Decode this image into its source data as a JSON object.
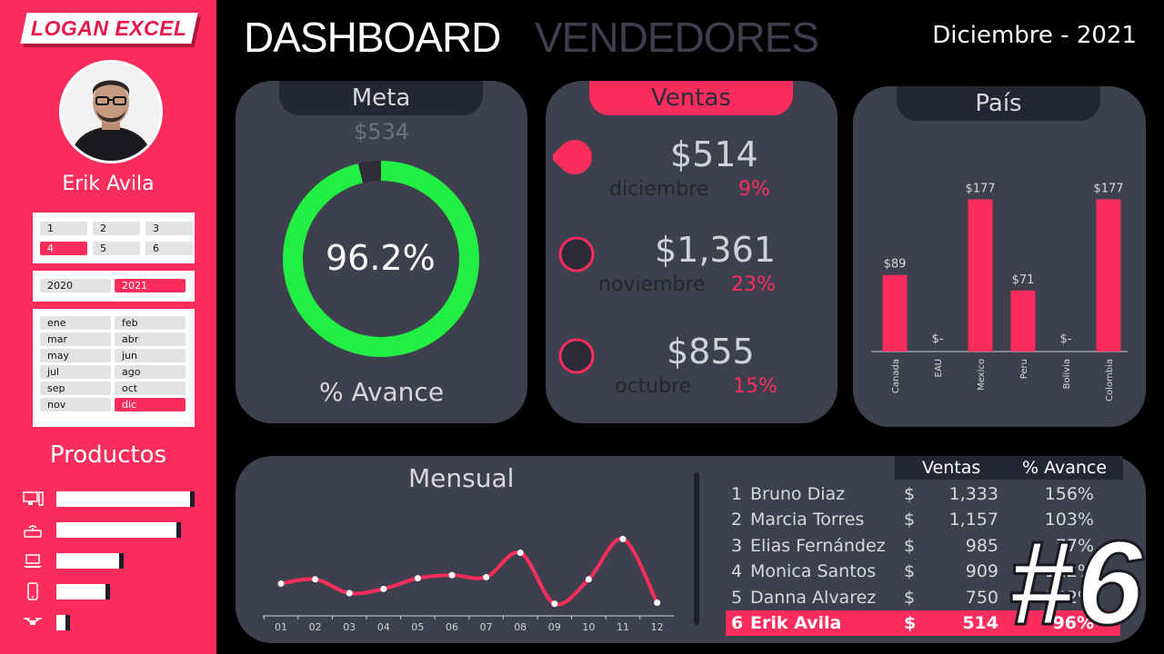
{
  "brand": {
    "logo_text": "LOGAN EXCEL"
  },
  "user": {
    "name": "Erik Avila"
  },
  "header": {
    "title": "DASHBOARD",
    "subtitle": "VENDEDORES",
    "period": "Diciembre - 2021"
  },
  "slicers": {
    "sellers": [
      {
        "label": "1",
        "selected": false
      },
      {
        "label": "2",
        "selected": false
      },
      {
        "label": "3",
        "selected": false
      },
      {
        "label": "4",
        "selected": true
      },
      {
        "label": "5",
        "selected": false
      },
      {
        "label": "6",
        "selected": false
      }
    ],
    "years": [
      {
        "label": "2020",
        "selected": false
      },
      {
        "label": "2021",
        "selected": true
      }
    ],
    "months": [
      {
        "label": "ene",
        "selected": false
      },
      {
        "label": "feb",
        "selected": false
      },
      {
        "label": "mar",
        "selected": false
      },
      {
        "label": "abr",
        "selected": false
      },
      {
        "label": "may",
        "selected": false
      },
      {
        "label": "jun",
        "selected": false
      },
      {
        "label": "jul",
        "selected": false
      },
      {
        "label": "ago",
        "selected": false
      },
      {
        "label": "sep",
        "selected": false
      },
      {
        "label": "oct",
        "selected": false
      },
      {
        "label": "nov",
        "selected": false
      },
      {
        "label": "dic",
        "selected": true
      }
    ]
  },
  "products": {
    "title": "Productos",
    "items": [
      {
        "icon": "desktop-icon",
        "value": 1.0
      },
      {
        "icon": "router-icon",
        "value": 0.9
      },
      {
        "icon": "laptop-icon",
        "value": 0.49
      },
      {
        "icon": "phone-icon",
        "value": 0.39
      },
      {
        "icon": "drone-icon",
        "value": 0.1
      }
    ]
  },
  "meta": {
    "tab": "Meta",
    "target": "$534",
    "percent": "96.2%",
    "percent_value": 0.962,
    "footer": "% Avance",
    "ring_color": "#22ee44"
  },
  "ventas": {
    "tab": "Ventas",
    "rows": [
      {
        "amount": "$514",
        "month": "diciembre",
        "pct": "9%",
        "active": true
      },
      {
        "amount": "$1,361",
        "month": "noviembre",
        "pct": "23%",
        "active": false
      },
      {
        "amount": "$855",
        "month": "octubre",
        "pct": "15%",
        "active": false
      }
    ]
  },
  "pais": {
    "tab": "País",
    "chart_data": {
      "type": "bar",
      "categories": [
        "Canada",
        "EAU",
        "Mexico",
        "Peru",
        "Bolivia",
        "Colombia"
      ],
      "values": [
        89,
        0,
        177,
        71,
        0,
        177
      ],
      "labels": [
        "$89",
        "$-",
        "$177",
        "$71",
        "$-",
        "$177"
      ],
      "ylim": [
        0,
        200
      ]
    }
  },
  "mensual": {
    "title": "Mensual",
    "chart_data": {
      "type": "line",
      "x": [
        "01",
        "02",
        "03",
        "04",
        "05",
        "06",
        "07",
        "08",
        "09",
        "10",
        "11",
        "12"
      ],
      "values": [
        560,
        600,
        470,
        510,
        610,
        640,
        620,
        850,
        370,
        600,
        980,
        380
      ],
      "ylim": [
        0,
        1400
      ]
    }
  },
  "ranking": {
    "headers": {
      "sales": "Ventas",
      "progress": "% Avance"
    },
    "rows": [
      {
        "rank": "1",
        "name": "Bruno Diaz",
        "currency": "$",
        "sales": "1,333",
        "progress": "156%",
        "highlight": false
      },
      {
        "rank": "2",
        "name": "Marcia Torres",
        "currency": "$",
        "sales": "1,157",
        "progress": "103%",
        "highlight": false
      },
      {
        "rank": "3",
        "name": "Elias Fernández",
        "currency": "$",
        "sales": "985",
        "progress": "77%",
        "highlight": false
      },
      {
        "rank": "4",
        "name": "Monica Santos",
        "currency": "$",
        "sales": "909",
        "progress": "112%",
        "highlight": false
      },
      {
        "rank": "5",
        "name": "Danna Alvarez",
        "currency": "$",
        "sales": "750",
        "progress": "142%",
        "highlight": false
      },
      {
        "rank": "6",
        "name": "Erik Avila",
        "currency": "$",
        "sales": "514",
        "progress": "96%",
        "highlight": true
      }
    ],
    "position_badge": "#6"
  },
  "colors": {
    "accent": "#fb2d5c",
    "card": "#3f404e",
    "tab": "#252633",
    "ring": "#22ee44"
  }
}
